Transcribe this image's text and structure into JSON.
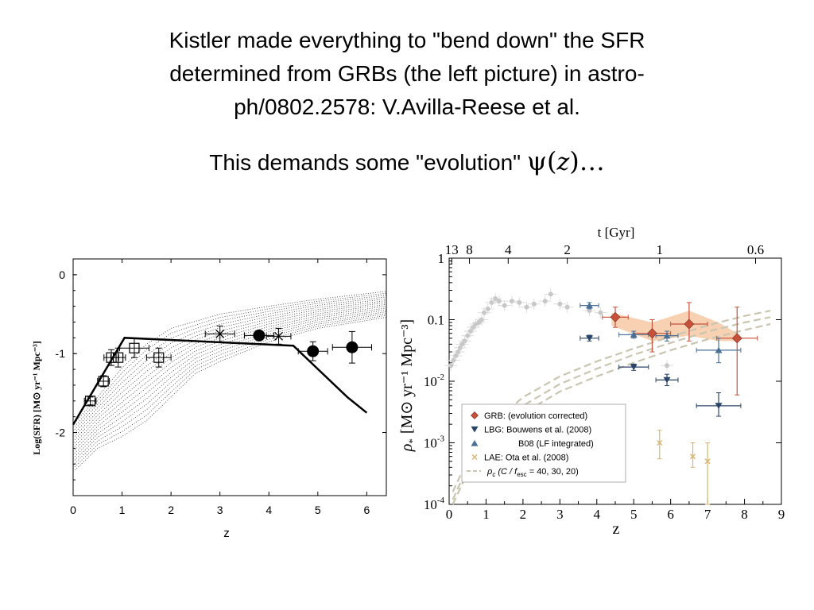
{
  "title_lines": [
    "Kistler made everything to \"bend  down\" the SFR",
    "determined from GRBs (the left picture) in astro-",
    "ph/0802.2578: V.Avilla-Reese et al."
  ],
  "subtitle": {
    "text": "This demands some \"evolution\" ",
    "psi": "ψ",
    "open": "(",
    "z": "z",
    "close": ")…"
  },
  "colors": {
    "grb": "#c8503a",
    "lbg": "#2a4468",
    "b08": "#4a6f95",
    "lae": "#d9b774",
    "shade": "#f6ccaa",
    "dashed": "#c9c5b0",
    "gray_data": "#c8c8c8"
  },
  "chart_data": [
    {
      "type": "scatter",
      "xlabel": "z",
      "ylabel": "Log(SFR)  [M⊙ yr⁻¹ Mpc⁻³]",
      "xlim": [
        0,
        6.4
      ],
      "ylim": [
        -2.8,
        0.2
      ],
      "x_ticks": [
        "0",
        "1",
        "2",
        "3",
        "4",
        "5",
        "6"
      ],
      "y_ticks": [
        "0",
        "-1",
        "-2"
      ],
      "model_band": {
        "upper": [
          [
            0,
            -1.9
          ],
          [
            0.5,
            -1.55
          ],
          [
            1,
            -1.18
          ],
          [
            1.5,
            -0.88
          ],
          [
            2,
            -0.68
          ],
          [
            3,
            -0.5
          ],
          [
            4,
            -0.4
          ],
          [
            5,
            -0.31
          ],
          [
            6,
            -0.24
          ],
          [
            6.4,
            -0.21
          ]
        ],
        "lower": [
          [
            0,
            -2.5
          ],
          [
            0.5,
            -2.2
          ],
          [
            1,
            -2.05
          ],
          [
            1.5,
            -1.85
          ],
          [
            2,
            -1.55
          ],
          [
            2.5,
            -1.25
          ],
          [
            3,
            -1.1
          ],
          [
            4,
            -0.85
          ],
          [
            5,
            -0.68
          ],
          [
            6,
            -0.58
          ],
          [
            6.4,
            -0.54
          ]
        ]
      },
      "broken_line": [
        [
          0,
          -1.9
        ],
        [
          1.05,
          -0.8
        ],
        [
          4.5,
          -0.9
        ],
        [
          5.6,
          -1.55
        ],
        [
          6,
          -1.75
        ]
      ],
      "series": [
        {
          "marker": "open-square",
          "points": [
            {
              "x": 0.35,
              "y": -1.6,
              "xerr": 0.12,
              "yerr": 0.05
            },
            {
              "x": 0.62,
              "y": -1.35,
              "xerr": 0.12,
              "yerr": 0.07
            },
            {
              "x": 0.78,
              "y": -1.05,
              "xerr": 0.15,
              "yerr": 0.1
            },
            {
              "x": 0.92,
              "y": -1.05,
              "xerr": 0.15,
              "yerr": 0.12
            },
            {
              "x": 1.25,
              "y": -0.93,
              "xerr": 0.3,
              "yerr": 0.12
            },
            {
              "x": 1.75,
              "y": -1.05,
              "xerr": 0.25,
              "yerr": 0.12
            }
          ]
        },
        {
          "marker": "cross",
          "points": [
            {
              "x": 3.0,
              "y": -0.75,
              "xerr": 0.3,
              "yerr": 0.1
            },
            {
              "x": 4.2,
              "y": -0.78,
              "xerr": 0.25,
              "yerr": 0.1
            }
          ]
        },
        {
          "marker": "filled-circle",
          "points": [
            {
              "x": 3.8,
              "y": -0.77,
              "xerr": 0.3,
              "yerr": 0.05
            },
            {
              "x": 4.9,
              "y": -0.97,
              "xerr": 0.3,
              "yerr": 0.12
            },
            {
              "x": 5.7,
              "y": -0.92,
              "xerr": 0.4,
              "yerr": 0.2
            }
          ]
        }
      ]
    },
    {
      "type": "scatter",
      "xlabel": "z",
      "ylabel_main": "ρ",
      "ylabel_sub": "*",
      "ylabel_units": "[M⊙ yr⁻¹ Mpc⁻³]",
      "top_axis_label": "t [Gyr]",
      "top_ticks": [
        {
          "label": "13",
          "z": 0.07
        },
        {
          "label": "8",
          "z": 0.55
        },
        {
          "label": "4",
          "z": 1.6
        },
        {
          "label": "2",
          "z": 3.2
        },
        {
          "label": "1",
          "z": 5.7
        },
        {
          "label": "0.6",
          "z": 8.3
        }
      ],
      "xlim": [
        0,
        9
      ],
      "ylim_log10": [
        -4,
        0
      ],
      "log_scale_y": true,
      "x_ticks": [
        "0",
        "1",
        "2",
        "3",
        "4",
        "5",
        "6",
        "7",
        "8",
        "9"
      ],
      "y_ticks": [
        {
          "text": "1",
          "log": 0
        },
        {
          "text": "0.1",
          "log": -1
        },
        {
          "base": "10",
          "exp": "-2",
          "log": -2
        },
        {
          "base": "10",
          "exp": "-3",
          "log": -3
        },
        {
          "base": "10",
          "exp": "-4",
          "log": -4
        }
      ],
      "shaded_band": {
        "upper": [
          [
            4.4,
            0.13
          ],
          [
            5.5,
            0.09
          ],
          [
            6.5,
            0.14
          ],
          [
            7.3,
            0.09
          ],
          [
            7.8,
            0.06
          ]
        ],
        "lower": [
          [
            7.8,
            0.045
          ],
          [
            7.3,
            0.045
          ],
          [
            6.5,
            0.055
          ],
          [
            5.5,
            0.045
          ],
          [
            4.4,
            0.08
          ]
        ]
      },
      "dashed_curves": [
        [
          [
            0.1,
            0.0001
          ],
          [
            0.8,
            0.0008
          ],
          [
            2,
            0.003
          ],
          [
            3,
            0.0068
          ],
          [
            4,
            0.012
          ],
          [
            5,
            0.02
          ],
          [
            6,
            0.032
          ],
          [
            7,
            0.048
          ],
          [
            8,
            0.068
          ],
          [
            8.7,
            0.085
          ]
        ],
        [
          [
            0.1,
            0.00012
          ],
          [
            0.8,
            0.001
          ],
          [
            2,
            0.004
          ],
          [
            3,
            0.009
          ],
          [
            4,
            0.016
          ],
          [
            5,
            0.027
          ],
          [
            6,
            0.042
          ],
          [
            7,
            0.064
          ],
          [
            8,
            0.09
          ],
          [
            8.7,
            0.11
          ]
        ],
        [
          [
            0.1,
            0.00016
          ],
          [
            0.8,
            0.0013
          ],
          [
            2,
            0.0055
          ],
          [
            3,
            0.012
          ],
          [
            4,
            0.021
          ],
          [
            5,
            0.034
          ],
          [
            6,
            0.053
          ],
          [
            7,
            0.081
          ],
          [
            8,
            0.115
          ],
          [
            8.7,
            0.14
          ]
        ]
      ],
      "gray_points": [
        [
          0.05,
          0.018
        ],
        [
          0.12,
          0.022
        ],
        [
          0.18,
          0.026
        ],
        [
          0.25,
          0.03
        ],
        [
          0.3,
          0.035
        ],
        [
          0.35,
          0.04
        ],
        [
          0.42,
          0.045
        ],
        [
          0.5,
          0.055
        ],
        [
          0.58,
          0.065
        ],
        [
          0.65,
          0.075
        ],
        [
          0.72,
          0.085
        ],
        [
          0.8,
          0.09
        ],
        [
          0.88,
          0.1
        ],
        [
          0.95,
          0.13
        ],
        [
          1.05,
          0.15
        ],
        [
          1.15,
          0.19
        ],
        [
          1.25,
          0.22
        ],
        [
          1.35,
          0.2
        ],
        [
          1.5,
          0.17
        ],
        [
          1.7,
          0.2
        ],
        [
          1.9,
          0.19
        ],
        [
          2.1,
          0.16
        ],
        [
          2.3,
          0.18
        ],
        [
          2.6,
          0.2
        ],
        [
          2.75,
          0.26
        ],
        [
          3.0,
          0.18
        ],
        [
          3.2,
          0.16
        ],
        [
          3.8,
          0.14
        ],
        [
          4.1,
          0.13
        ],
        [
          5.0,
          0.06
        ],
        [
          5.9,
          0.018
        ]
      ],
      "series": [
        {
          "name": "GRB: (evolution corrected)",
          "marker": "diamond",
          "color": "#c8503a",
          "points": [
            {
              "x": 4.5,
              "y": 0.11,
              "xerr": 0.35,
              "ylo": 0.075,
              "yhi": 0.16
            },
            {
              "x": 5.5,
              "y": 0.06,
              "xerr": 0.5,
              "ylo": 0.03,
              "yhi": 0.1
            },
            {
              "x": 6.5,
              "y": 0.085,
              "xerr": 0.5,
              "ylo": 0.045,
              "yhi": 0.19
            },
            {
              "x": 7.8,
              "y": 0.05,
              "xerr": 0.55,
              "ylo": 0.006,
              "yhi": 0.16
            }
          ]
        },
        {
          "name": "LBG:  Bouwens et al. (2008)",
          "marker": "triangle-down",
          "color": "#2a4468",
          "points": [
            {
              "x": 3.8,
              "y": 0.05,
              "xerr": 0.25,
              "ylo": 0.045,
              "yhi": 0.056
            },
            {
              "x": 5.0,
              "y": 0.017,
              "xerr": 0.4,
              "ylo": 0.015,
              "yhi": 0.019
            },
            {
              "x": 5.9,
              "y": 0.0105,
              "xerr": 0.3,
              "ylo": 0.0085,
              "yhi": 0.013
            },
            {
              "x": 7.3,
              "y": 0.004,
              "xerr": 0.6,
              "ylo": 0.0027,
              "yhi": 0.0065
            }
          ]
        },
        {
          "name": "B08 (LF integrated)",
          "marker": "triangle-up",
          "color": "#4a6f95",
          "points": [
            {
              "x": 3.8,
              "y": 0.17,
              "xerr": 0.25,
              "ylo": 0.15,
              "yhi": 0.19
            },
            {
              "x": 5.0,
              "y": 0.057,
              "xerr": 0.4,
              "ylo": 0.05,
              "yhi": 0.065
            },
            {
              "x": 5.9,
              "y": 0.055,
              "xerr": 0.3,
              "ylo": 0.045,
              "yhi": 0.065
            },
            {
              "x": 7.3,
              "y": 0.032,
              "xerr": 0.6,
              "ylo": 0.02,
              "yhi": 0.05
            }
          ]
        },
        {
          "name": "LAE:  Ota et al. (2008)",
          "marker": "x",
          "color": "#d9b774",
          "points": [
            {
              "x": 5.7,
              "y": 0.001,
              "xerr": 0,
              "ylo": 0.00055,
              "yhi": 0.0016
            },
            {
              "x": 6.6,
              "y": 0.0006,
              "xerr": 0,
              "ylo": 0.0004,
              "yhi": 0.001
            },
            {
              "x": 7.0,
              "y": 0.0005,
              "xerr": 0,
              "ylo": 0.0001,
              "yhi": 0.001
            }
          ]
        }
      ],
      "legend_dashed": {
        "prefix": "ρ",
        "sub": "c",
        "mid": " (C / f",
        "sub2": "esc",
        "suffix": " = 40, 30, 20)"
      }
    }
  ]
}
